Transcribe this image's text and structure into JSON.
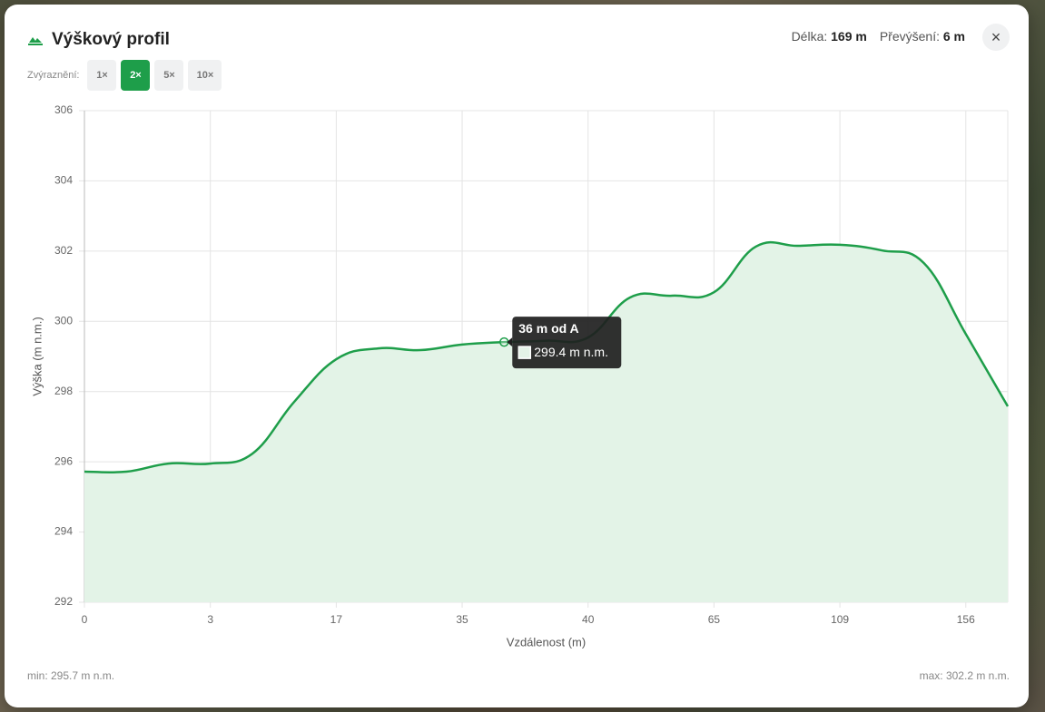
{
  "header": {
    "title": "Výškový profil",
    "length_label": "Délka:",
    "length_value": "169 m",
    "rise_label": "Převýšení:",
    "rise_value": "6 m"
  },
  "exaggeration": {
    "label": "Zvýraznění:",
    "options": [
      "1×",
      "2×",
      "5×",
      "10×"
    ],
    "active": 1
  },
  "chart_data": {
    "type": "line",
    "fill": true,
    "color": "#1e9e4a",
    "fill_color": "#e3f3e7",
    "x_label": "Vzdálenost (m)",
    "y_label": "Výška (m n.m.)",
    "categories": [
      "0",
      null,
      null,
      "3",
      null,
      null,
      "17",
      null,
      null,
      "35",
      null,
      null,
      "40",
      null,
      null,
      "65",
      null,
      null,
      "109",
      null,
      null,
      "156",
      null
    ],
    "values": [
      295.72,
      295.72,
      295.95,
      295.95,
      296.23,
      297.71,
      298.92,
      299.23,
      299.18,
      299.34,
      299.41,
      299.45,
      299.54,
      300.68,
      300.73,
      300.83,
      302.13,
      302.15,
      302.18,
      302.02,
      301.66,
      299.64,
      297.58
    ],
    "ylim": [
      292,
      306
    ],
    "yticks": [
      292,
      294,
      296,
      298,
      300,
      302,
      304,
      306
    ],
    "grid": true,
    "tooltip": {
      "index": 10,
      "title": "36 m od A",
      "label": "299.4 m n.m."
    }
  },
  "footer": {
    "min": "min: 295.7 m n.m.",
    "max": "max: 302.2 m n.m."
  }
}
